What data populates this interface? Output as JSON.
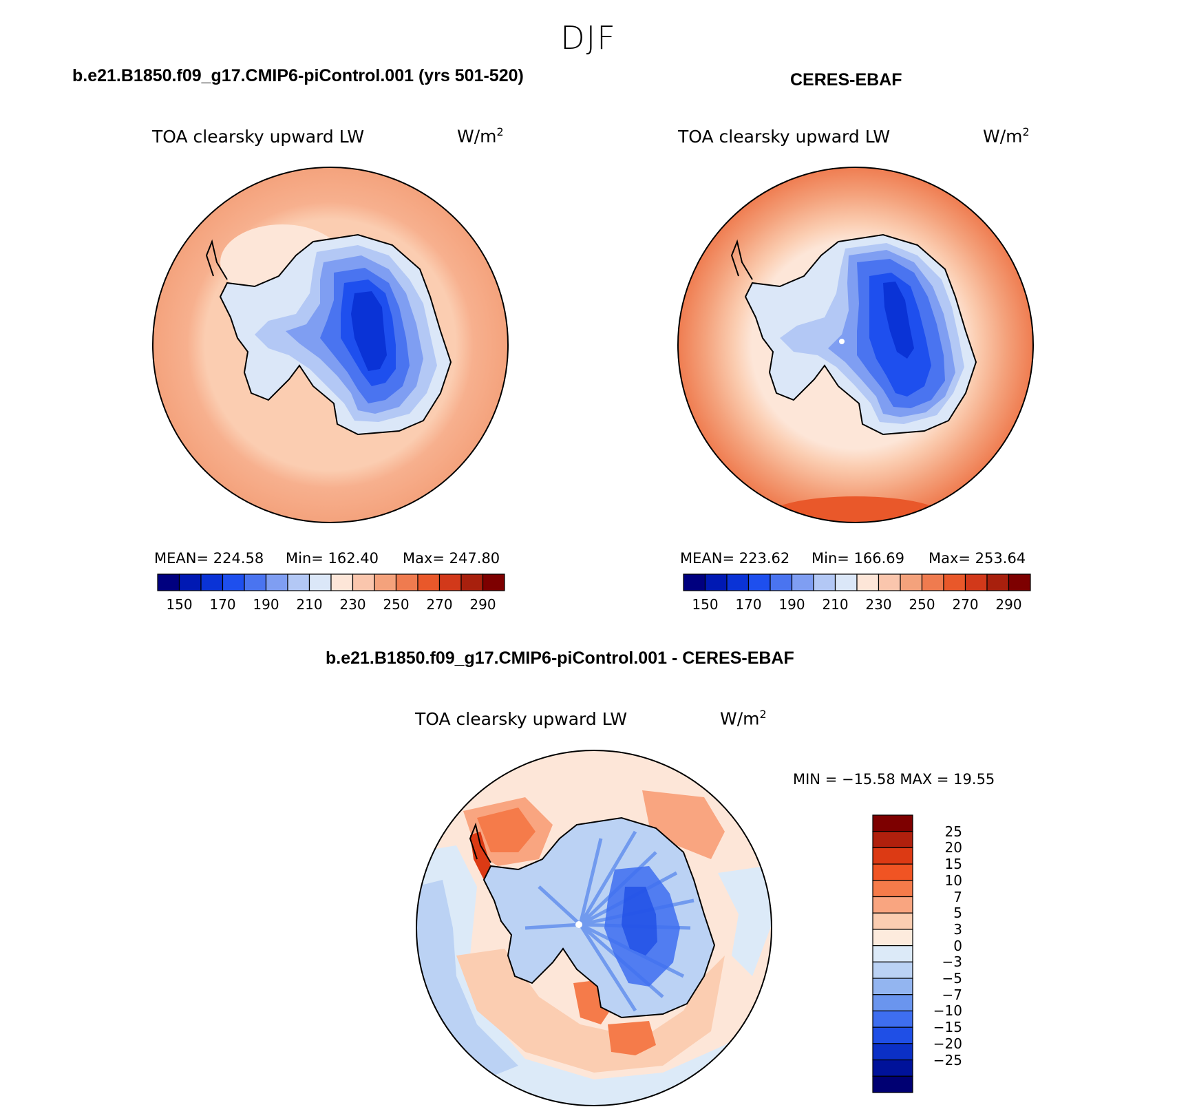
{
  "season": "DJF",
  "panels": [
    {
      "case": "b.e21.B1850.f09_g17.CMIP6-piControl.001 (yrs 501-520)",
      "variable": "TOA clearsky upward LW",
      "units": "W/m",
      "units_exp": "2",
      "stats": {
        "mean": "MEAN= 224.58",
        "min": "Min= 162.40",
        "max": "Max= 247.80"
      }
    },
    {
      "case": "CERES-EBAF",
      "variable": "TOA clearsky upward LW",
      "units": "W/m",
      "units_exp": "2",
      "stats": {
        "mean": "MEAN= 223.62",
        "min": "Min= 166.69",
        "max": "Max= 253.64"
      }
    },
    {
      "case": "b.e21.B1850.f09_g17.CMIP6-piControl.001 - CERES-EBAF",
      "variable": "TOA clearsky upward LW",
      "units": "W/m",
      "units_exp": "2",
      "stats": {
        "minmax": "MIN = −15.58 MAX =   19.55"
      }
    }
  ],
  "colorbars": {
    "absolute": {
      "orientation": "horizontal",
      "colors": [
        "#00007f",
        "#0019b3",
        "#0a33d6",
        "#1e4fee",
        "#4a74f0",
        "#7f9ef2",
        "#b3c8f5",
        "#dbe7f8",
        "#fde6d8",
        "#fac6ad",
        "#f4a27c",
        "#ef7b4f",
        "#e9582a",
        "#d2391a",
        "#a8200d",
        "#7d0000"
      ],
      "labels": [
        "150",
        "170",
        "190",
        "210",
        "230",
        "250",
        "270",
        "290"
      ]
    },
    "difference": {
      "orientation": "vertical",
      "colors": [
        "#7d0000",
        "#b0200d",
        "#dc3a14",
        "#f05423",
        "#f57b4a",
        "#f9a580",
        "#fbcdb1",
        "#fdebdd",
        "#dceaf8",
        "#bbd2f4",
        "#93b5f0",
        "#6a95ee",
        "#3e6ef0",
        "#1f4fe6",
        "#0b30c6",
        "#00129a",
        "#000072"
      ],
      "labels": [
        "25",
        "20",
        "15",
        "10",
        "7",
        "5",
        "3",
        "0",
        "−3",
        "−5",
        "−7",
        "−10",
        "−15",
        "−20",
        "−25"
      ]
    }
  },
  "chart_data": [
    {
      "type": "heatmap",
      "projection": "south polar stereographic",
      "title": "b.e21.B1850.f09_g17.CMIP6-piControl.001 (yrs 501-520)",
      "variable": "TOA clearsky upward LW",
      "units": "W/m2",
      "mean": 224.58,
      "min": 162.4,
      "max": 247.8,
      "levels": [
        150,
        160,
        170,
        180,
        190,
        200,
        210,
        220,
        230,
        240,
        250,
        260,
        270,
        280,
        290
      ]
    },
    {
      "type": "heatmap",
      "projection": "south polar stereographic",
      "title": "CERES-EBAF",
      "variable": "TOA clearsky upward LW",
      "units": "W/m2",
      "mean": 223.62,
      "min": 166.69,
      "max": 253.64,
      "levels": [
        150,
        160,
        170,
        180,
        190,
        200,
        210,
        220,
        230,
        240,
        250,
        260,
        270,
        280,
        290
      ]
    },
    {
      "type": "heatmap",
      "projection": "south polar stereographic",
      "title": "b.e21.B1850.f09_g17.CMIP6-piControl.001 - CERES-EBAF",
      "variable": "TOA clearsky upward LW",
      "units": "W/m2",
      "min": -15.58,
      "max": 19.55,
      "levels": [
        -25,
        -20,
        -15,
        -10,
        -7,
        -5,
        -3,
        0,
        3,
        5,
        7,
        10,
        15,
        20,
        25
      ]
    }
  ]
}
